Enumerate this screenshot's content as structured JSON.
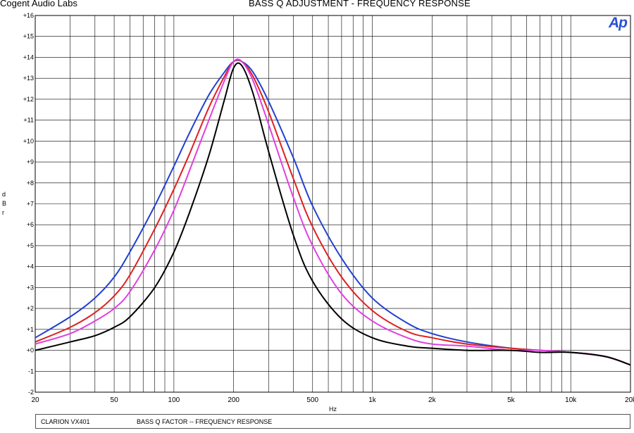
{
  "header": {
    "company": "Cogent Audio Labs",
    "title": "BASS Q ADJUSTMENT   -  FREQUENCY RESPONSE",
    "logo_text": "Ap"
  },
  "footer": {
    "device": "CLARION VX401",
    "description": "BASS Q FACTOR   --   FREQUENCY RESPONSE"
  },
  "chart_data": {
    "type": "line",
    "xscale": "log",
    "xlim": [
      20,
      20000
    ],
    "ylim": [
      -2,
      16
    ],
    "xlabel": "Hz",
    "ylabel_chars": [
      "d",
      "B",
      "r"
    ],
    "xticks": [
      20,
      50,
      100,
      200,
      500,
      1000,
      2000,
      5000,
      10000,
      20000
    ],
    "xtick_labels": [
      "20",
      "50",
      "100",
      "200",
      "500",
      "1k",
      "2k",
      "5k",
      "10k",
      "20k"
    ],
    "yticks": [
      -2,
      -1,
      0,
      1,
      2,
      3,
      4,
      5,
      6,
      7,
      8,
      9,
      10,
      11,
      12,
      13,
      14,
      15,
      16
    ],
    "ytick_labels": [
      "-2",
      "-1",
      "+0",
      "+1",
      "+2",
      "+3",
      "+4",
      "+5",
      "+6",
      "+7",
      "+8",
      "+9",
      "+10",
      "+11",
      "+12",
      "+13",
      "+14",
      "+15",
      "+16"
    ],
    "grid": true,
    "x": [
      20,
      30,
      40,
      50,
      60,
      80,
      100,
      120,
      150,
      180,
      200,
      220,
      250,
      300,
      400,
      500,
      700,
      1000,
      1500,
      2000,
      3000,
      5000,
      7000,
      10000,
      15000,
      20000
    ],
    "series": [
      {
        "color": "#2040d0",
        "values": [
          0.6,
          1.6,
          2.5,
          3.5,
          4.7,
          6.9,
          8.8,
          10.4,
          12.2,
          13.3,
          13.8,
          13.8,
          13.3,
          11.9,
          9.2,
          6.9,
          4.4,
          2.5,
          1.3,
          0.8,
          0.4,
          0.1,
          0.0,
          -0.1,
          -0.3,
          -0.7
        ]
      },
      {
        "color": "#e02020",
        "values": [
          0.4,
          1.1,
          1.8,
          2.6,
          3.6,
          5.8,
          7.7,
          9.4,
          11.6,
          13.1,
          13.8,
          13.8,
          13.1,
          11.4,
          8.2,
          5.9,
          3.5,
          1.9,
          0.9,
          0.6,
          0.3,
          0.1,
          0.0,
          -0.1,
          -0.3,
          -0.7
        ]
      },
      {
        "color": "#e040e0",
        "values": [
          0.3,
          0.8,
          1.4,
          2.0,
          2.8,
          4.8,
          6.7,
          8.6,
          11.0,
          12.9,
          13.8,
          13.8,
          12.9,
          10.8,
          7.3,
          5.0,
          2.7,
          1.4,
          0.6,
          0.3,
          0.2,
          0.0,
          0.0,
          -0.1,
          -0.3,
          -0.7
        ]
      },
      {
        "color": "#000000",
        "values": [
          0.0,
          0.4,
          0.7,
          1.1,
          1.6,
          3.0,
          4.7,
          6.6,
          9.3,
          12.0,
          13.5,
          13.6,
          12.3,
          9.5,
          5.5,
          3.3,
          1.5,
          0.6,
          0.2,
          0.1,
          0.0,
          0.0,
          -0.1,
          -0.1,
          -0.3,
          -0.7
        ]
      }
    ]
  }
}
